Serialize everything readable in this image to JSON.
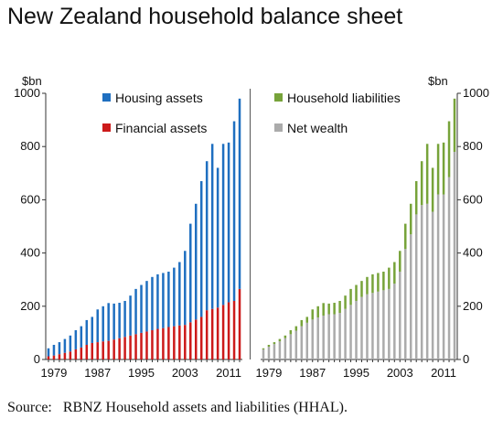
{
  "title": "New Zealand household balance sheet",
  "source": "Source:   RBNZ Household assets and liabilities (HHAL).",
  "colors": {
    "housing": "#1f6fc0",
    "financial": "#cc1a1a",
    "liabilities": "#77a33a",
    "net_wealth": "#ababab",
    "axis": "#333333",
    "divider": "#555555"
  },
  "chart_data": [
    {
      "type": "bar",
      "stacked": true,
      "ylabel": "$bn",
      "ylim": [
        0,
        1000
      ],
      "yticks": [
        "0",
        "200",
        "400",
        "600",
        "800",
        "1000"
      ],
      "xtick_labels": [
        "1979",
        "1987",
        "1995",
        "2003",
        "2011"
      ],
      "legend_placement": "top",
      "categories": [
        1978,
        1979,
        1980,
        1981,
        1982,
        1983,
        1984,
        1985,
        1986,
        1987,
        1988,
        1989,
        1990,
        1991,
        1992,
        1993,
        1994,
        1995,
        1996,
        1997,
        1998,
        1999,
        2000,
        2001,
        2002,
        2003,
        2004,
        2005,
        2006,
        2007,
        2008,
        2009,
        2010,
        2011,
        2012,
        2013
      ],
      "series": [
        {
          "name": "Financial assets",
          "color": "financial",
          "values": [
            12,
            15,
            20,
            25,
            30,
            38,
            45,
            55,
            62,
            65,
            68,
            70,
            75,
            80,
            85,
            90,
            95,
            100,
            105,
            110,
            115,
            118,
            122,
            125,
            128,
            130,
            140,
            150,
            160,
            185,
            190,
            195,
            205,
            215,
            220,
            265
          ]
        },
        {
          "name": "Housing assets",
          "color": "housing",
          "values": [
            30,
            40,
            45,
            52,
            60,
            72,
            80,
            93,
            98,
            123,
            132,
            142,
            135,
            133,
            135,
            150,
            170,
            180,
            190,
            200,
            205,
            207,
            208,
            220,
            238,
            278,
            370,
            435,
            510,
            560,
            620,
            525,
            605,
            600,
            675,
            715
          ]
        }
      ]
    },
    {
      "type": "bar",
      "stacked": true,
      "ylabel": "$bn",
      "ylim": [
        0,
        1000
      ],
      "yticks": [
        "0",
        "200",
        "400",
        "600",
        "800",
        "1000"
      ],
      "xtick_labels": [
        "1979",
        "1987",
        "1995",
        "2003",
        "2011"
      ],
      "legend_placement": "top",
      "categories": [
        1978,
        1979,
        1980,
        1981,
        1982,
        1983,
        1984,
        1985,
        1986,
        1987,
        1988,
        1989,
        1990,
        1991,
        1992,
        1993,
        1994,
        1995,
        1996,
        1997,
        1998,
        1999,
        2000,
        2001,
        2002,
        2003,
        2004,
        2005,
        2006,
        2007,
        2008,
        2009,
        2010,
        2011,
        2012,
        2013
      ],
      "series": [
        {
          "name": "Net wealth",
          "color": "net_wealth",
          "values": [
            38,
            48,
            58,
            68,
            80,
            95,
            108,
            125,
            138,
            150,
            158,
            165,
            170,
            170,
            175,
            190,
            205,
            220,
            235,
            245,
            250,
            255,
            260,
            265,
            285,
            330,
            415,
            470,
            545,
            580,
            585,
            555,
            620,
            620,
            685,
            780
          ]
        },
        {
          "name": "Household liabilities",
          "color": "liabilities",
          "values": [
            4,
            7,
            7,
            9,
            10,
            15,
            17,
            23,
            22,
            38,
            42,
            47,
            40,
            43,
            45,
            50,
            60,
            60,
            60,
            65,
            70,
            70,
            70,
            80,
            81,
            78,
            95,
            115,
            125,
            165,
            225,
            165,
            190,
            195,
            210,
            200
          ]
        }
      ]
    }
  ]
}
